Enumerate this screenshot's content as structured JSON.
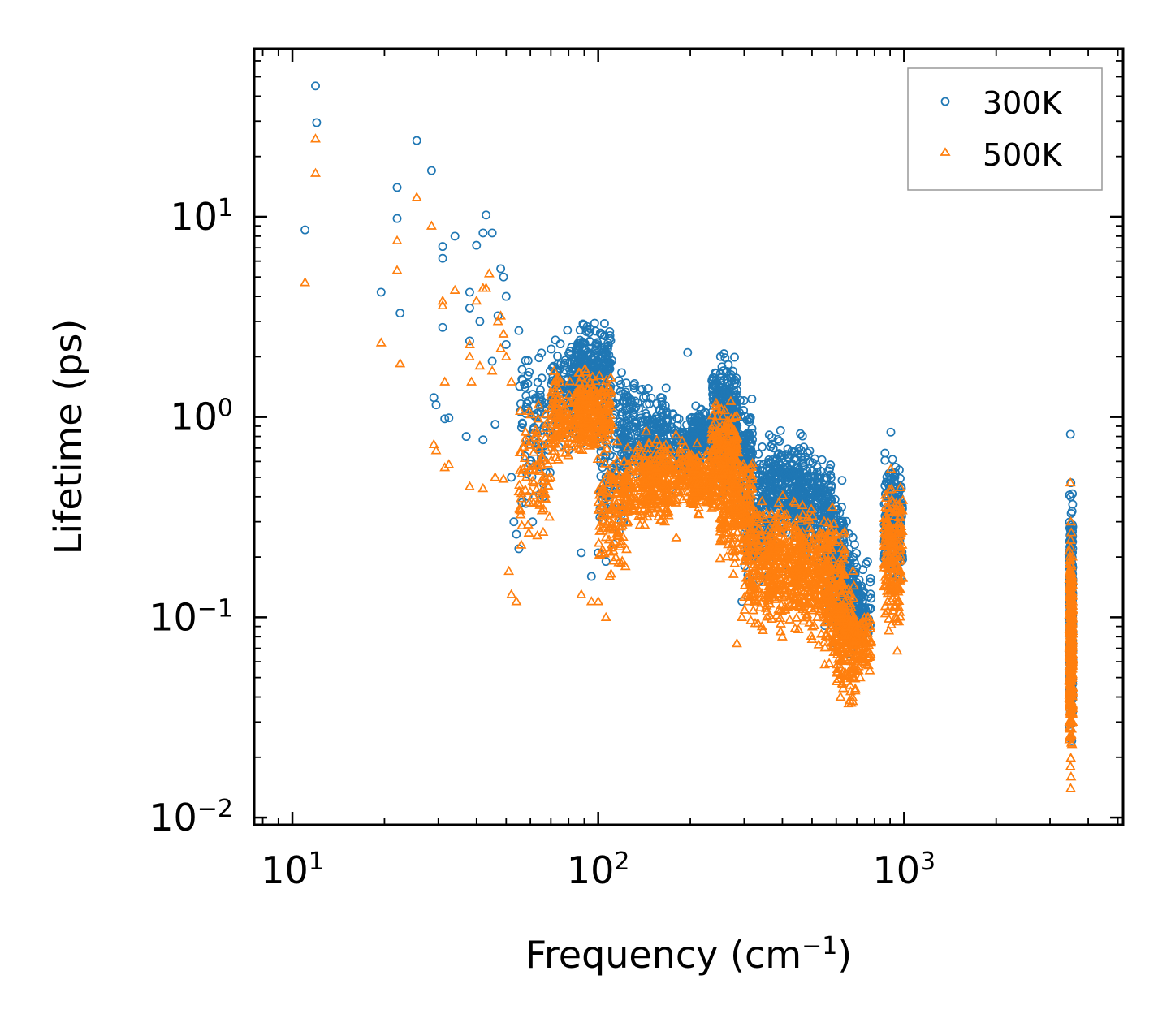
{
  "chart_data": {
    "type": "scatter",
    "title": "",
    "xlabel": "Frequency (cm",
    "xlabel_sup": "−1",
    "xlabel_end": ")",
    "ylabel": "Lifetime (ps)",
    "xscale": "log",
    "yscale": "log",
    "xlim": [
      7.5,
      5200
    ],
    "ylim": [
      0.0092,
      69
    ],
    "x_ticks": [
      {
        "value": 10,
        "base": "10",
        "exp": "1"
      },
      {
        "value": 100,
        "base": "10",
        "exp": "2"
      },
      {
        "value": 1000,
        "base": "10",
        "exp": "3"
      }
    ],
    "y_ticks": [
      {
        "value": 0.01,
        "base": "10",
        "exp": "−2"
      },
      {
        "value": 0.1,
        "base": "10",
        "exp": "−1"
      },
      {
        "value": 1,
        "base": "10",
        "exp": "0"
      },
      {
        "value": 10,
        "base": "10",
        "exp": "1"
      }
    ],
    "legend_position": "top-right",
    "series": [
      {
        "name": "300K",
        "marker": "circle",
        "color": "#1f77b4",
        "points": [
          [
            11.9,
            45
          ],
          [
            12.0,
            29.5
          ],
          [
            11.0,
            8.6
          ],
          [
            25.5,
            24
          ],
          [
            28.5,
            17
          ],
          [
            22.0,
            14
          ],
          [
            22.0,
            9.8
          ],
          [
            22.5,
            3.3
          ],
          [
            19.5,
            4.2
          ],
          [
            31.0,
            7.1
          ],
          [
            31.0,
            6.2
          ],
          [
            31.0,
            2.8
          ],
          [
            34.0,
            8.0
          ],
          [
            38.0,
            4.2
          ],
          [
            38.0,
            3.5
          ],
          [
            38.0,
            2.4
          ],
          [
            40.0,
            7.2
          ],
          [
            42.0,
            8.3
          ],
          [
            43.0,
            10.2
          ],
          [
            45.0,
            8.3
          ],
          [
            48.0,
            5.5
          ],
          [
            49.0,
            5.0
          ],
          [
            47.0,
            3.2
          ],
          [
            50.0,
            4.0
          ],
          [
            41.0,
            3.0
          ],
          [
            50.0,
            2.3
          ],
          [
            45.0,
            1.9
          ],
          [
            55.0,
            2.7
          ],
          [
            29.0,
            1.25
          ],
          [
            29.5,
            1.15
          ],
          [
            31.5,
            0.98
          ],
          [
            32.5,
            0.99
          ],
          [
            37.0,
            0.8
          ],
          [
            42.0,
            0.77
          ],
          [
            46.0,
            0.92
          ],
          [
            52.0,
            0.5
          ],
          [
            53.0,
            0.3
          ],
          [
            54.0,
            0.26
          ],
          [
            55.0,
            0.22
          ],
          [
            58.0,
            0.37
          ],
          [
            61.0,
            0.3
          ],
          [
            88.0,
            0.21
          ],
          [
            95.0,
            0.16
          ],
          [
            100.0,
            0.21
          ],
          [
            106.0,
            0.19
          ],
          [
            119.0,
            0.3
          ],
          [
            125.0,
            0.34
          ],
          [
            140.0,
            0.5
          ],
          [
            155.0,
            0.6
          ],
          [
            165.0,
            0.55
          ],
          [
            180.0,
            0.42
          ],
          [
            196.0,
            2.1
          ],
          [
            205.0,
            0.8
          ],
          [
            235.0,
            0.42
          ],
          [
            284.0,
            0.5
          ],
          [
            295.0,
            0.12
          ],
          [
            310.0,
            0.15
          ],
          [
            343.0,
            0.2
          ],
          [
            400.0,
            0.17
          ],
          [
            470.0,
            0.25
          ],
          [
            520.0,
            0.3
          ],
          [
            620.0,
            0.12
          ],
          [
            680.0,
            0.25
          ],
          [
            730.0,
            0.12
          ],
          [
            760.0,
            0.19
          ],
          [
            775.0,
            0.15
          ],
          [
            905.0,
            0.84
          ],
          [
            945.0,
            0.46
          ],
          [
            3500.0,
            0.82
          ],
          [
            3510.0,
            0.47
          ],
          [
            3505.0,
            0.4
          ],
          [
            3515.0,
            0.28
          ]
        ],
        "clusters": [
          {
            "x": [
              55,
              70
            ],
            "y": [
              0.28,
              2.8
            ],
            "n": 90
          },
          {
            "x": [
              70,
              90
            ],
            "y": [
              0.6,
              3.2
            ],
            "n": 160
          },
          {
            "x": [
              83,
              110
            ],
            "y": [
              0.9,
              3.4
            ],
            "n": 260
          },
          {
            "x": [
              100,
              125
            ],
            "y": [
              0.16,
              2.3
            ],
            "n": 130
          },
          {
            "x": [
              120,
              170
            ],
            "y": [
              0.38,
              1.8
            ],
            "n": 200
          },
          {
            "x": [
              140,
              215
            ],
            "y": [
              0.45,
              1.1
            ],
            "n": 220
          },
          {
            "x": [
              200,
              240
            ],
            "y": [
              0.5,
              1.3
            ],
            "n": 140
          },
          {
            "x": [
              235,
              285
            ],
            "y": [
              0.55,
              2.4
            ],
            "n": 220
          },
          {
            "x": [
              250,
              320
            ],
            "y": [
              0.35,
              1.4
            ],
            "n": 240
          },
          {
            "x": [
              300,
              370
            ],
            "y": [
              0.12,
              0.95
            ],
            "n": 180
          },
          {
            "x": [
              360,
              470
            ],
            "y": [
              0.2,
              0.95
            ],
            "n": 260
          },
          {
            "x": [
              440,
              580
            ],
            "y": [
              0.16,
              0.85
            ],
            "n": 240
          },
          {
            "x": [
              550,
              640
            ],
            "y": [
              0.06,
              0.6
            ],
            "n": 180
          },
          {
            "x": [
              600,
              700
            ],
            "y": [
              0.05,
              0.35
            ],
            "n": 160
          },
          {
            "x": [
              680,
              780
            ],
            "y": [
              0.06,
              0.2
            ],
            "n": 90
          },
          {
            "x": [
              860,
              990
            ],
            "y": [
              0.12,
              0.75
            ],
            "n": 200
          },
          {
            "x": [
              3470,
              3560
            ],
            "y": [
              0.022,
              0.5
            ],
            "n": 320
          }
        ]
      },
      {
        "name": "500K",
        "marker": "triangle",
        "color": "#ff7f0e",
        "points": [
          [
            11.9,
            24.5
          ],
          [
            11.9,
            16.5
          ],
          [
            11.0,
            4.7
          ],
          [
            25.5,
            12.5
          ],
          [
            28.5,
            9.0
          ],
          [
            22.0,
            7.6
          ],
          [
            22.0,
            5.4
          ],
          [
            22.5,
            1.85
          ],
          [
            19.5,
            2.35
          ],
          [
            31.0,
            3.8
          ],
          [
            31.0,
            3.6
          ],
          [
            31.5,
            1.5
          ],
          [
            34.0,
            4.3
          ],
          [
            38.0,
            2.3
          ],
          [
            38.0,
            2.0
          ],
          [
            38.5,
            1.5
          ],
          [
            40.0,
            3.8
          ],
          [
            42.0,
            4.4
          ],
          [
            43.0,
            4.4
          ],
          [
            44.0,
            5.2
          ],
          [
            48.0,
            3.2
          ],
          [
            49.0,
            2.6
          ],
          [
            47.0,
            3.0
          ],
          [
            48.0,
            2.2
          ],
          [
            41.0,
            1.8
          ],
          [
            50.0,
            2.0
          ],
          [
            45.0,
            1.7
          ],
          [
            52.0,
            1.5
          ],
          [
            29.0,
            0.73
          ],
          [
            29.5,
            0.68
          ],
          [
            31.5,
            0.56
          ],
          [
            32.5,
            0.58
          ],
          [
            38.0,
            0.45
          ],
          [
            42.0,
            0.44
          ],
          [
            46.0,
            0.5
          ],
          [
            49.0,
            0.49
          ],
          [
            51.0,
            0.17
          ],
          [
            52.0,
            0.13
          ],
          [
            54.0,
            0.12
          ],
          [
            56.0,
            0.23
          ],
          [
            59.0,
            0.29
          ],
          [
            88.0,
            0.13
          ],
          [
            95.0,
            0.12
          ],
          [
            100.0,
            0.12
          ],
          [
            106.0,
            0.1
          ],
          [
            119.0,
            0.24
          ],
          [
            125.0,
            0.3
          ],
          [
            140.0,
            0.38
          ],
          [
            155.0,
            0.4
          ],
          [
            165.0,
            0.3
          ],
          [
            180.0,
            0.25
          ],
          [
            196.0,
            0.55
          ],
          [
            205.0,
            0.42
          ],
          [
            235.0,
            0.35
          ],
          [
            284.0,
            0.074
          ],
          [
            295.0,
            0.1
          ],
          [
            310.0,
            0.12
          ],
          [
            343.0,
            0.09
          ],
          [
            400.0,
            0.08
          ],
          [
            470.0,
            0.12
          ],
          [
            520.0,
            0.1
          ],
          [
            620.0,
            0.04
          ],
          [
            680.0,
            0.05
          ],
          [
            730.0,
            0.06
          ],
          [
            760.0,
            0.1
          ],
          [
            905.0,
            0.55
          ],
          [
            945.0,
            0.35
          ],
          [
            950.0,
            0.068
          ],
          [
            3500.0,
            0.47
          ],
          [
            3510.0,
            0.3
          ],
          [
            3505.0,
            0.014
          ],
          [
            3515.0,
            0.016
          ],
          [
            3500.0,
            0.018
          ]
        ],
        "clusters": [
          {
            "x": [
              55,
              70
            ],
            "y": [
              0.18,
              1.6
            ],
            "n": 90
          },
          {
            "x": [
              70,
              90
            ],
            "y": [
              0.5,
              1.9
            ],
            "n": 160
          },
          {
            "x": [
              85,
              110
            ],
            "y": [
              0.55,
              2.1
            ],
            "n": 220
          },
          {
            "x": [
              100,
              125
            ],
            "y": [
              0.12,
              0.95
            ],
            "n": 130
          },
          {
            "x": [
              120,
              170
            ],
            "y": [
              0.25,
              0.85
            ],
            "n": 200
          },
          {
            "x": [
              140,
              215
            ],
            "y": [
              0.3,
              0.9
            ],
            "n": 220
          },
          {
            "x": [
              200,
              240
            ],
            "y": [
              0.3,
              0.75
            ],
            "n": 140
          },
          {
            "x": [
              235,
              285
            ],
            "y": [
              0.3,
              1.3
            ],
            "n": 220
          },
          {
            "x": [
              250,
              320
            ],
            "y": [
              0.15,
              0.85
            ],
            "n": 240
          },
          {
            "x": [
              300,
              370
            ],
            "y": [
              0.07,
              0.5
            ],
            "n": 180
          },
          {
            "x": [
              360,
              470
            ],
            "y": [
              0.08,
              0.45
            ],
            "n": 260
          },
          {
            "x": [
              440,
              580
            ],
            "y": [
              0.06,
              0.45
            ],
            "n": 240
          },
          {
            "x": [
              550,
              640
            ],
            "y": [
              0.04,
              0.4
            ],
            "n": 180
          },
          {
            "x": [
              600,
              700
            ],
            "y": [
              0.03,
              0.2
            ],
            "n": 160
          },
          {
            "x": [
              680,
              780
            ],
            "y": [
              0.045,
              0.12
            ],
            "n": 90
          },
          {
            "x": [
              860,
              990
            ],
            "y": [
              0.07,
              0.6
            ],
            "n": 200
          },
          {
            "x": [
              3470,
              3560
            ],
            "y": [
              0.014,
              0.35
            ],
            "n": 320
          }
        ]
      }
    ]
  }
}
